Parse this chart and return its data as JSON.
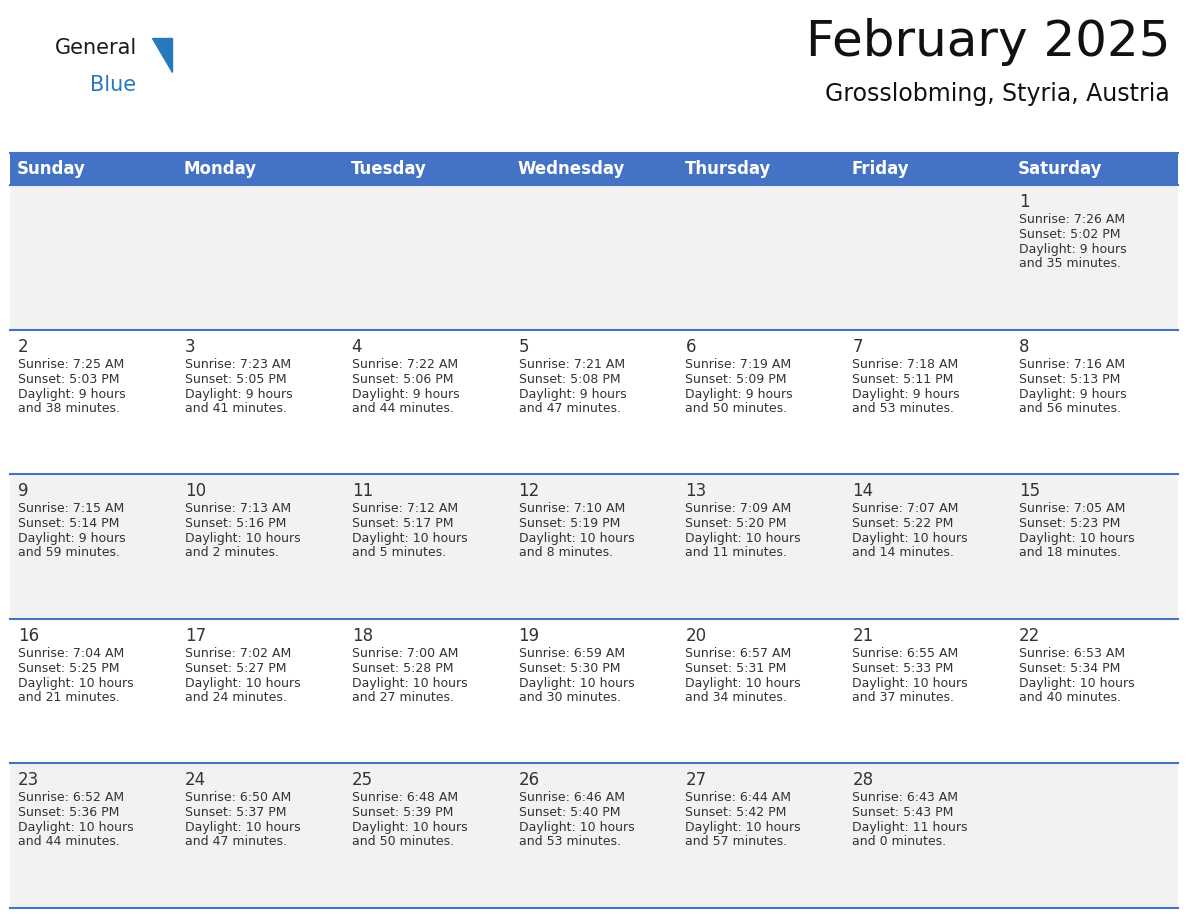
{
  "title": "February 2025",
  "subtitle": "Grosslobming, Styria, Austria",
  "header_bg": "#4472C4",
  "header_text": "#FFFFFF",
  "header_days": [
    "Sunday",
    "Monday",
    "Tuesday",
    "Wednesday",
    "Thursday",
    "Friday",
    "Saturday"
  ],
  "row_bg_0": "#F2F2F2",
  "row_bg_1": "#FFFFFF",
  "row_bg_2": "#F2F2F2",
  "row_bg_3": "#FFFFFF",
  "row_bg_4": "#F2F2F2",
  "border_color": "#4472C4",
  "cell_border_color": "#FFFFFF",
  "text_color": "#333333",
  "day_number_color": "#333333",
  "title_fontsize": 36,
  "subtitle_fontsize": 17,
  "header_fontsize": 12,
  "day_number_fontsize": 12,
  "info_fontsize": 9,
  "logo_general_color": "#1a1a1a",
  "logo_blue_color": "#2878BE",
  "days_data": [
    {
      "day": 1,
      "col": 6,
      "row": 0,
      "sunrise": "7:26 AM",
      "sunset": "5:02 PM",
      "daylight": "9 hours and 35 minutes."
    },
    {
      "day": 2,
      "col": 0,
      "row": 1,
      "sunrise": "7:25 AM",
      "sunset": "5:03 PM",
      "daylight": "9 hours and 38 minutes."
    },
    {
      "day": 3,
      "col": 1,
      "row": 1,
      "sunrise": "7:23 AM",
      "sunset": "5:05 PM",
      "daylight": "9 hours and 41 minutes."
    },
    {
      "day": 4,
      "col": 2,
      "row": 1,
      "sunrise": "7:22 AM",
      "sunset": "5:06 PM",
      "daylight": "9 hours and 44 minutes."
    },
    {
      "day": 5,
      "col": 3,
      "row": 1,
      "sunrise": "7:21 AM",
      "sunset": "5:08 PM",
      "daylight": "9 hours and 47 minutes."
    },
    {
      "day": 6,
      "col": 4,
      "row": 1,
      "sunrise": "7:19 AM",
      "sunset": "5:09 PM",
      "daylight": "9 hours and 50 minutes."
    },
    {
      "day": 7,
      "col": 5,
      "row": 1,
      "sunrise": "7:18 AM",
      "sunset": "5:11 PM",
      "daylight": "9 hours and 53 minutes."
    },
    {
      "day": 8,
      "col": 6,
      "row": 1,
      "sunrise": "7:16 AM",
      "sunset": "5:13 PM",
      "daylight": "9 hours and 56 minutes."
    },
    {
      "day": 9,
      "col": 0,
      "row": 2,
      "sunrise": "7:15 AM",
      "sunset": "5:14 PM",
      "daylight": "9 hours and 59 minutes."
    },
    {
      "day": 10,
      "col": 1,
      "row": 2,
      "sunrise": "7:13 AM",
      "sunset": "5:16 PM",
      "daylight": "10 hours and 2 minutes."
    },
    {
      "day": 11,
      "col": 2,
      "row": 2,
      "sunrise": "7:12 AM",
      "sunset": "5:17 PM",
      "daylight": "10 hours and 5 minutes."
    },
    {
      "day": 12,
      "col": 3,
      "row": 2,
      "sunrise": "7:10 AM",
      "sunset": "5:19 PM",
      "daylight": "10 hours and 8 minutes."
    },
    {
      "day": 13,
      "col": 4,
      "row": 2,
      "sunrise": "7:09 AM",
      "sunset": "5:20 PM",
      "daylight": "10 hours and 11 minutes."
    },
    {
      "day": 14,
      "col": 5,
      "row": 2,
      "sunrise": "7:07 AM",
      "sunset": "5:22 PM",
      "daylight": "10 hours and 14 minutes."
    },
    {
      "day": 15,
      "col": 6,
      "row": 2,
      "sunrise": "7:05 AM",
      "sunset": "5:23 PM",
      "daylight": "10 hours and 18 minutes."
    },
    {
      "day": 16,
      "col": 0,
      "row": 3,
      "sunrise": "7:04 AM",
      "sunset": "5:25 PM",
      "daylight": "10 hours and 21 minutes."
    },
    {
      "day": 17,
      "col": 1,
      "row": 3,
      "sunrise": "7:02 AM",
      "sunset": "5:27 PM",
      "daylight": "10 hours and 24 minutes."
    },
    {
      "day": 18,
      "col": 2,
      "row": 3,
      "sunrise": "7:00 AM",
      "sunset": "5:28 PM",
      "daylight": "10 hours and 27 minutes."
    },
    {
      "day": 19,
      "col": 3,
      "row": 3,
      "sunrise": "6:59 AM",
      "sunset": "5:30 PM",
      "daylight": "10 hours and 30 minutes."
    },
    {
      "day": 20,
      "col": 4,
      "row": 3,
      "sunrise": "6:57 AM",
      "sunset": "5:31 PM",
      "daylight": "10 hours and 34 minutes."
    },
    {
      "day": 21,
      "col": 5,
      "row": 3,
      "sunrise": "6:55 AM",
      "sunset": "5:33 PM",
      "daylight": "10 hours and 37 minutes."
    },
    {
      "day": 22,
      "col": 6,
      "row": 3,
      "sunrise": "6:53 AM",
      "sunset": "5:34 PM",
      "daylight": "10 hours and 40 minutes."
    },
    {
      "day": 23,
      "col": 0,
      "row": 4,
      "sunrise": "6:52 AM",
      "sunset": "5:36 PM",
      "daylight": "10 hours and 44 minutes."
    },
    {
      "day": 24,
      "col": 1,
      "row": 4,
      "sunrise": "6:50 AM",
      "sunset": "5:37 PM",
      "daylight": "10 hours and 47 minutes."
    },
    {
      "day": 25,
      "col": 2,
      "row": 4,
      "sunrise": "6:48 AM",
      "sunset": "5:39 PM",
      "daylight": "10 hours and 50 minutes."
    },
    {
      "day": 26,
      "col": 3,
      "row": 4,
      "sunrise": "6:46 AM",
      "sunset": "5:40 PM",
      "daylight": "10 hours and 53 minutes."
    },
    {
      "day": 27,
      "col": 4,
      "row": 4,
      "sunrise": "6:44 AM",
      "sunset": "5:42 PM",
      "daylight": "10 hours and 57 minutes."
    },
    {
      "day": 28,
      "col": 5,
      "row": 4,
      "sunrise": "6:43 AM",
      "sunset": "5:43 PM",
      "daylight": "11 hours and 0 minutes."
    }
  ]
}
